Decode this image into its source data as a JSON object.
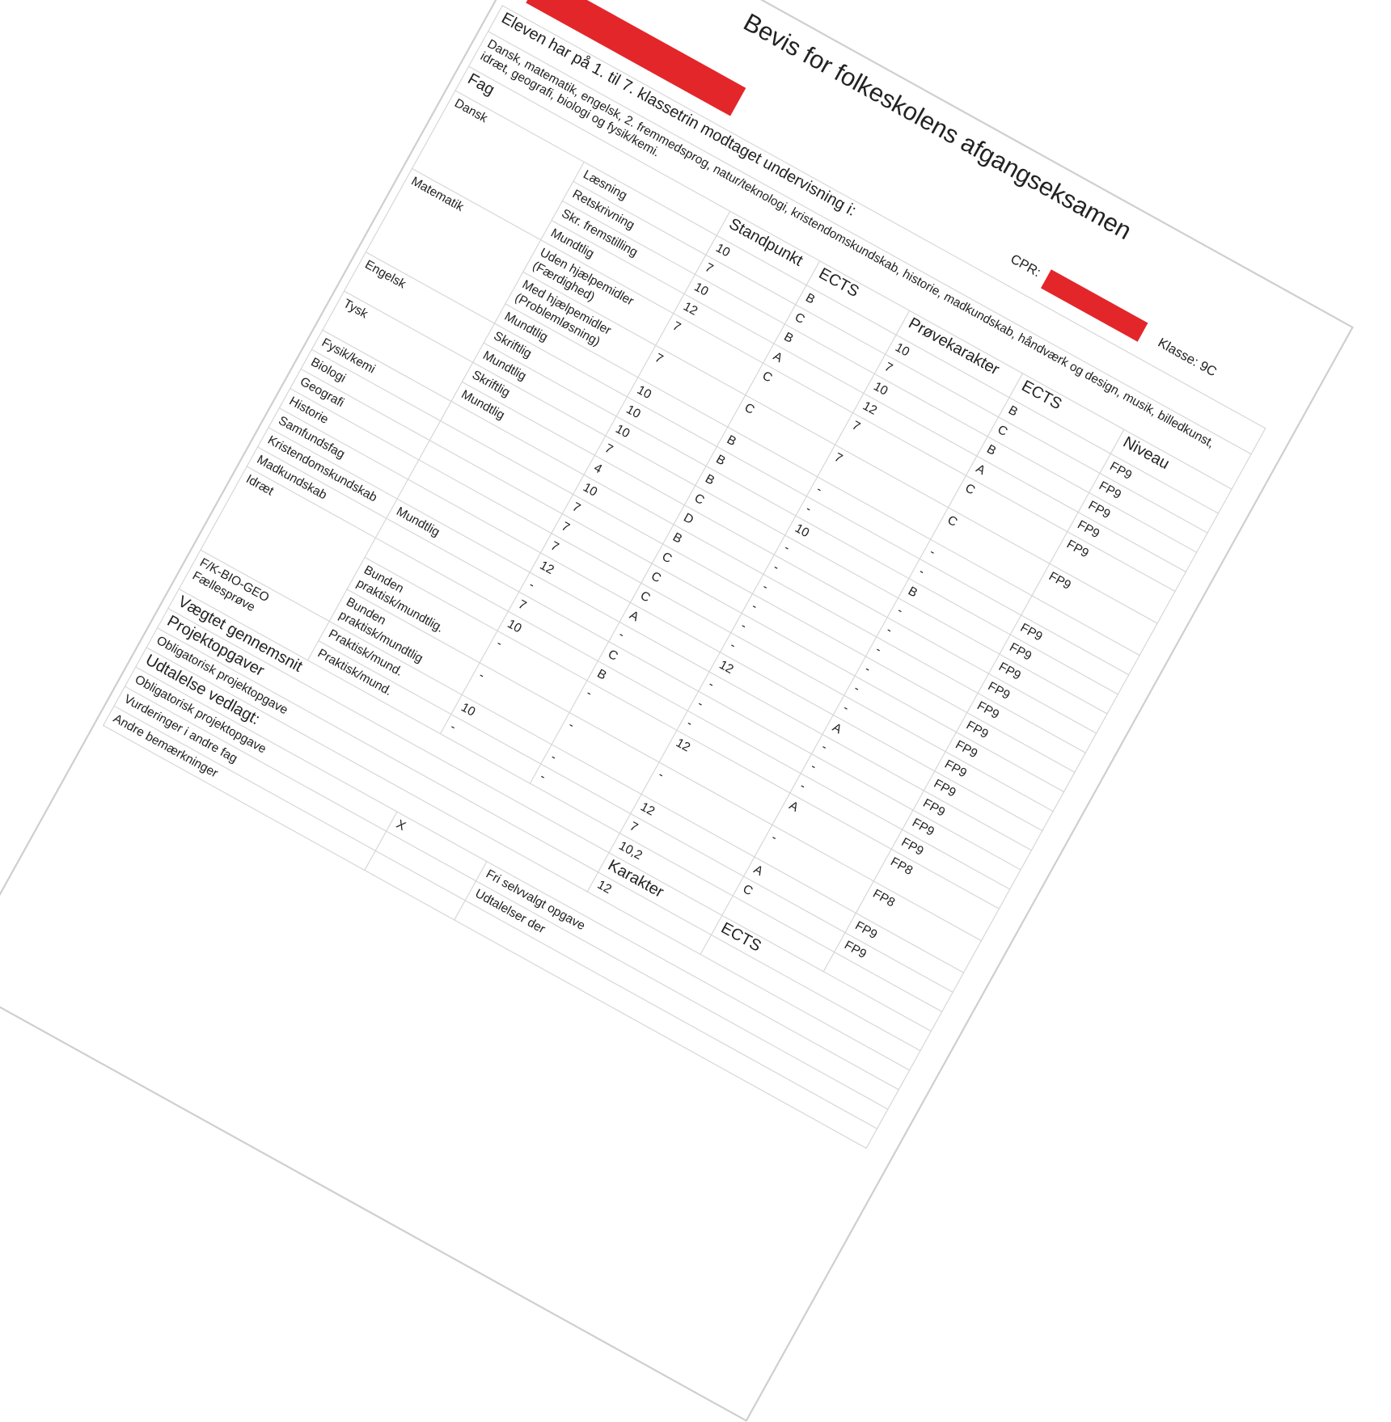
{
  "document": {
    "title": "Bevis for folkeskolens afgangseksamen",
    "name_label": ":",
    "cpr_label": "CPR:",
    "klasse": "Klasse: 9C",
    "redaction_color": "#e3262a",
    "intro": "Eleven har på 1. til 7. klassetrin modtaget undervisning i:",
    "subjects_taught": "Dansk, matematik, engelsk, 2. fremmedsprog, natur/teknologi, kristendomskundskab, historie, madkundskab, håndværk og design, musik, billedkunst, idræt, geografi, biologi og fysik/kemi."
  },
  "headers": {
    "fag": "Fag",
    "standpunkt": "Standpunkt",
    "ects": "ECTS",
    "provekarakter": "Prøvekarakter",
    "ects2": "ECTS",
    "niveau": "Niveau"
  },
  "groups": [
    {
      "fag": "Dansk",
      "rows": [
        {
          "sub": "Læsning",
          "std": "10",
          "ects": "B",
          "prove": "10",
          "ects2": "B",
          "niveau": "FP9"
        },
        {
          "sub": "Retskrivning",
          "std": "7",
          "ects": "C",
          "prove": "7",
          "ects2": "C",
          "niveau": "FP9"
        },
        {
          "sub": "Skr. fremstilling",
          "std": "10",
          "ects": "B",
          "prove": "10",
          "ects2": "B",
          "niveau": "FP9"
        },
        {
          "sub": "Mundtlig",
          "std": "12",
          "ects": "A",
          "prove": "12",
          "ects2": "A",
          "niveau": "FP9"
        }
      ]
    },
    {
      "fag": "Matematik",
      "rows": [
        {
          "sub": "Uden hjælpemidler",
          "sub2": "(Færdighed)",
          "std": "7",
          "ects": "C",
          "prove": "7",
          "ects2": "C",
          "niveau": "FP9"
        },
        {
          "sub": "Med hjælpemidler",
          "sub2": "(Problemløsning)",
          "std": "7",
          "ects": "C",
          "prove": "7",
          "ects2": "C",
          "niveau": "FP9"
        },
        {
          "sub": "Mundtlig",
          "std": "10",
          "ects": "B",
          "prove": "-",
          "ects2": "-",
          "niveau": ""
        }
      ]
    },
    {
      "fag": "Engelsk",
      "rows": [
        {
          "sub": "Skriftlig",
          "std": "10",
          "ects": "B",
          "prove": "-",
          "ects2": "-",
          "niveau": "FP9"
        },
        {
          "sub": "Mundtlig",
          "std": "10",
          "ects": "B",
          "prove": "10",
          "ects2": "B",
          "niveau": "FP9"
        }
      ]
    },
    {
      "fag": "Tysk",
      "rows": [
        {
          "sub": "Skriftlig",
          "std": "7",
          "ects": "C",
          "prove": "-",
          "ects2": "-",
          "niveau": "FP9"
        },
        {
          "sub": "Mundtlig",
          "std": "4",
          "ects": "D",
          "prove": "-",
          "ects2": "-",
          "niveau": "FP9"
        }
      ]
    },
    {
      "fag": "Fysik/kemi",
      "rows": [
        {
          "sub": "",
          "std": "10",
          "ects": "B",
          "prove": "-",
          "ects2": "-",
          "niveau": "FP9"
        }
      ]
    },
    {
      "fag": "Biologi",
      "rows": [
        {
          "sub": "",
          "std": "7",
          "ects": "C",
          "prove": "-",
          "ects2": "-",
          "niveau": "FP9"
        }
      ]
    },
    {
      "fag": "Geografi",
      "rows": [
        {
          "sub": "",
          "std": "7",
          "ects": "C",
          "prove": "-",
          "ects2": "-",
          "niveau": "FP9"
        }
      ]
    },
    {
      "fag": "Historie",
      "rows": [
        {
          "sub": "",
          "std": "7",
          "ects": "C",
          "prove": "-",
          "ects2": "-",
          "niveau": "FP9"
        }
      ]
    },
    {
      "fag": "Samfundsfag",
      "rows": [
        {
          "sub": "",
          "std": "12",
          "ects": "A",
          "prove": "12",
          "ects2": "A",
          "niveau": "FP9"
        }
      ]
    },
    {
      "fag": "Kristendomskundskab",
      "rows": [
        {
          "sub": "Mundtlig",
          "std": "-",
          "ects": "-",
          "prove": "-",
          "ects2": "-",
          "niveau": "FP9"
        }
      ]
    },
    {
      "fag": "Madkundskab",
      "rows": [
        {
          "sub": "",
          "std": "7",
          "ects": "C",
          "prove": "-",
          "ects2": "-",
          "niveau": "FP9"
        }
      ]
    },
    {
      "fag": "Idræt",
      "rows": [
        {
          "sub": "",
          "std": "10",
          "ects": "B",
          "prove": "-",
          "ects2": "-",
          "niveau": "FP9"
        },
        {
          "sub": "Bunden",
          "sub2": "praktisk/mundtlig.",
          "std": "-",
          "ects": "-",
          "prove": "12",
          "ects2": "A",
          "niveau": "FP8"
        },
        {
          "sub": "Bunden",
          "sub2": "praktisk/mundtlig",
          "std": "-",
          "ects": "-",
          "prove": "-",
          "ects2": "-",
          "niveau": "FP8"
        }
      ]
    },
    {
      "fag": "F/K-BIO-GEO",
      "fag2": "Fællesprøve",
      "rows": [
        {
          "sub": "Praktisk/mund.",
          "std": "10",
          "ects": "-",
          "prove": "12",
          "ects2": "A",
          "niveau": "FP9"
        },
        {
          "sub": "Praktisk/mund.",
          "std": "-",
          "ects": "-",
          "prove": "7",
          "ects2": "C",
          "niveau": "FP9"
        }
      ]
    }
  ],
  "average": {
    "label": "Vægtet gennemsnit",
    "value": "10,2"
  },
  "projects": {
    "heading": "Projektopgaver",
    "karakter_header": "Karakter",
    "ects_header": "ECTS",
    "rows": [
      {
        "label": "Obligatorisk projektopgave",
        "karakter": "12"
      }
    ]
  },
  "statements": {
    "heading": "Udtalelse vedlagt:",
    "rows": [
      {
        "label": "Obligatorisk projektopgave",
        "mark": "X",
        "right": "Fri selvvalgt opgave"
      },
      {
        "label": "Vurderinger i andre fag",
        "mark": "",
        "right": "Udtalelser der"
      },
      {
        "label": "Andre bemærkninger",
        "mark": "",
        "right": ""
      }
    ]
  }
}
